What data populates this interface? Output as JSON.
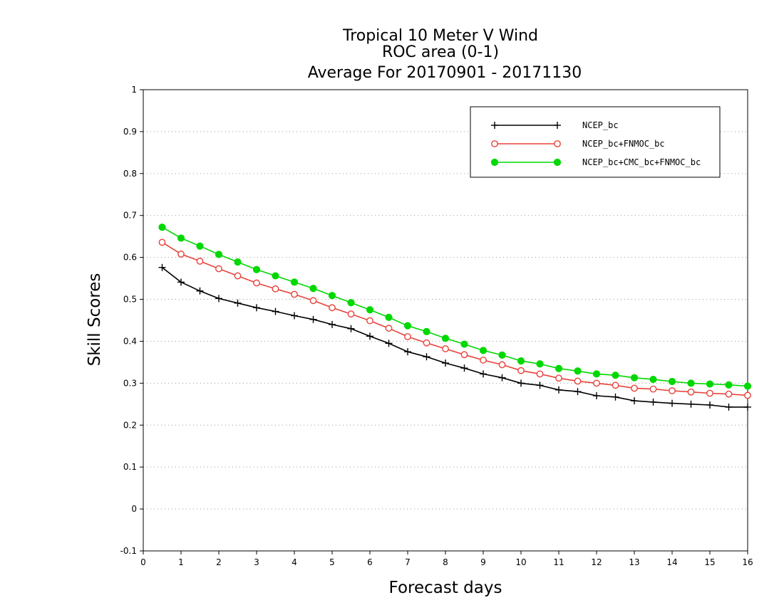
{
  "chart_data": {
    "type": "line",
    "title_lines": [
      "Tropical 10 Meter V Wind",
      "ROC area (0-1)",
      "Average For 20170901 - 20171130"
    ],
    "xlabel": "Forecast days",
    "ylabel": "Skill Scores",
    "xlim": [
      0,
      16
    ],
    "ylim": [
      -0.1,
      1
    ],
    "x_ticks": [
      "0",
      "1",
      "2",
      "3",
      "4",
      "5",
      "6",
      "7",
      "8",
      "9",
      "10",
      "11",
      "12",
      "13",
      "14",
      "15",
      "16"
    ],
    "y_ticks": [
      "-0.1",
      "0",
      "0.1",
      "0.2",
      "0.3",
      "0.4",
      "0.5",
      "0.6",
      "0.7",
      "0.8",
      "0.9",
      "1"
    ],
    "grid": "horizontal dotted",
    "legend_position": "top-right",
    "x": [
      0.5,
      1,
      1.5,
      2,
      2.5,
      3,
      3.5,
      4,
      4.5,
      5,
      5.5,
      6,
      6.5,
      7,
      7.5,
      8,
      8.5,
      9,
      9.5,
      10,
      10.5,
      11,
      11.5,
      12,
      12.5,
      13,
      13.5,
      14,
      14.5,
      15,
      15.5,
      16
    ],
    "series": [
      {
        "name": "NCEP_bc",
        "color": "#000000",
        "marker": "plus",
        "values": [
          0.576,
          0.541,
          0.52,
          0.502,
          0.491,
          0.48,
          0.471,
          0.461,
          0.452,
          0.44,
          0.43,
          0.412,
          0.395,
          0.375,
          0.363,
          0.348,
          0.336,
          0.322,
          0.313,
          0.3,
          0.295,
          0.284,
          0.28,
          0.27,
          0.267,
          0.258,
          0.255,
          0.252,
          0.25,
          0.248,
          0.243,
          0.243
        ]
      },
      {
        "name": "NCEP_bc+FNMOC_bc",
        "color": "#e8413a",
        "marker": "open-circle",
        "values": [
          0.636,
          0.608,
          0.591,
          0.573,
          0.556,
          0.539,
          0.525,
          0.512,
          0.497,
          0.48,
          0.465,
          0.449,
          0.431,
          0.411,
          0.396,
          0.382,
          0.368,
          0.355,
          0.344,
          0.33,
          0.322,
          0.312,
          0.305,
          0.3,
          0.295,
          0.288,
          0.286,
          0.282,
          0.279,
          0.276,
          0.274,
          0.271
        ]
      },
      {
        "name": "NCEP_bc+CMC_bc+FNMOC_bc",
        "color": "#00d800",
        "marker": "filled-circle",
        "values": [
          0.672,
          0.646,
          0.627,
          0.607,
          0.589,
          0.571,
          0.556,
          0.541,
          0.526,
          0.509,
          0.492,
          0.475,
          0.457,
          0.437,
          0.423,
          0.407,
          0.393,
          0.378,
          0.367,
          0.353,
          0.346,
          0.335,
          0.329,
          0.322,
          0.319,
          0.313,
          0.309,
          0.304,
          0.3,
          0.298,
          0.296,
          0.293
        ]
      }
    ]
  }
}
